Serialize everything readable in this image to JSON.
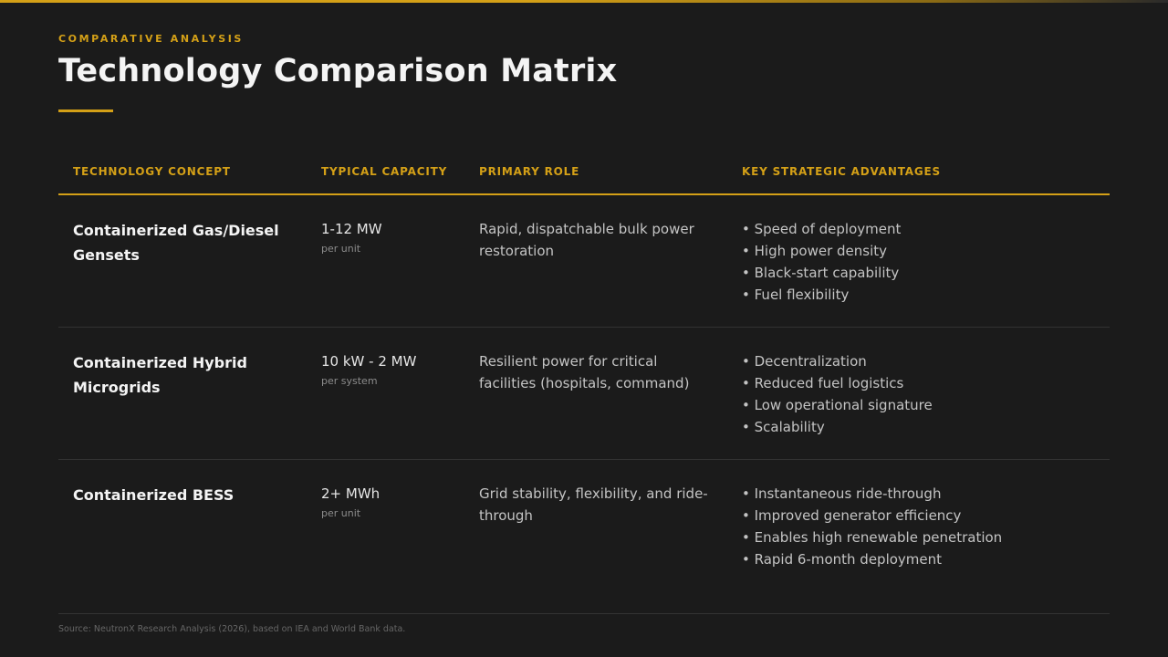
{
  "header": {
    "eyebrow": "COMPARATIVE ANALYSIS",
    "title": "Technology Comparison Matrix"
  },
  "table": {
    "columns": [
      "TECHNOLOGY CONCEPT",
      "TYPICAL CAPACITY",
      "PRIMARY ROLE",
      "KEY STRATEGIC ADVANTAGES"
    ],
    "rows": [
      {
        "concept_line1": "Containerized Gas/Diesel",
        "concept_line2": "Gensets",
        "capacity": "1-12 MW",
        "capacity_unit": "per unit",
        "role_line1": "Rapid, dispatchable bulk power",
        "role_line2": "restoration",
        "advantages": [
          "Speed of deployment",
          "High power density",
          "Black-start capability",
          "Fuel flexibility"
        ]
      },
      {
        "concept_line1": "Containerized Hybrid",
        "concept_line2": "Microgrids",
        "capacity": "10 kW - 2 MW",
        "capacity_unit": "per system",
        "role_line1": "Resilient power for critical",
        "role_line2": "facilities (hospitals, command)",
        "advantages": [
          "Decentralization",
          "Reduced fuel logistics",
          "Low operational signature",
          "Scalability"
        ]
      },
      {
        "concept_line1": "Containerized BESS",
        "concept_line2": "",
        "capacity": "2+ MWh",
        "capacity_unit": "per unit",
        "role_line1": "Grid stability, flexibility, and ride-",
        "role_line2": "through",
        "advantages": [
          "Instantaneous ride-through",
          "Improved generator efficiency",
          "Enables high renewable penetration",
          "Rapid 6-month deployment"
        ]
      }
    ]
  },
  "footer": {
    "source": "Source: NeutronX Research Analysis (2026), based on IEA and World Bank data."
  },
  "colors": {
    "accent": "#d4a017",
    "background": "#1b1b1b",
    "text_primary": "#f4f4f4",
    "text_secondary": "#c4c4c4"
  }
}
